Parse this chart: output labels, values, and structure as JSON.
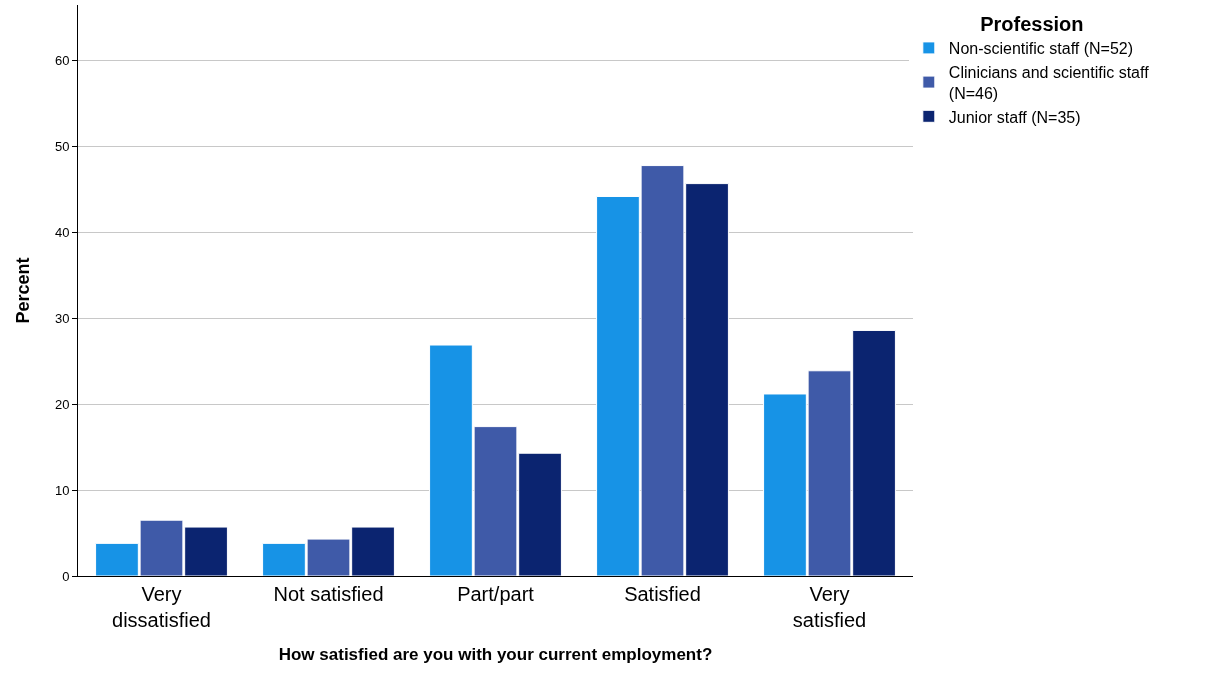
{
  "chart_data": {
    "type": "bar",
    "xlabel": "How satisfied are you with your current employment?",
    "ylabel": "Percent",
    "legend_title": "Profession",
    "categories": [
      "Very dissatisfied",
      "Not satisfied",
      "Part/part",
      "Satisfied",
      "Very satisfied"
    ],
    "series": [
      {
        "name": "Non-scientific staff (N=52)",
        "color": "#1793e6",
        "values": [
          3.8,
          3.8,
          26.9,
          44.2,
          21.2
        ]
      },
      {
        "name": "Clinicians and scientific staff (N=46)",
        "color": "#3f5aa8",
        "values": [
          6.5,
          4.3,
          17.4,
          47.8,
          23.9
        ]
      },
      {
        "name": "Junior staff (N=35)",
        "color": "#0b2470",
        "values": [
          5.7,
          5.7,
          14.3,
          45.7,
          28.6
        ]
      }
    ],
    "ylim": [
      0,
      66.5
    ],
    "yticks": [
      0,
      10,
      20,
      30,
      40,
      50,
      60
    ],
    "grid": "y",
    "legend": "top right"
  }
}
